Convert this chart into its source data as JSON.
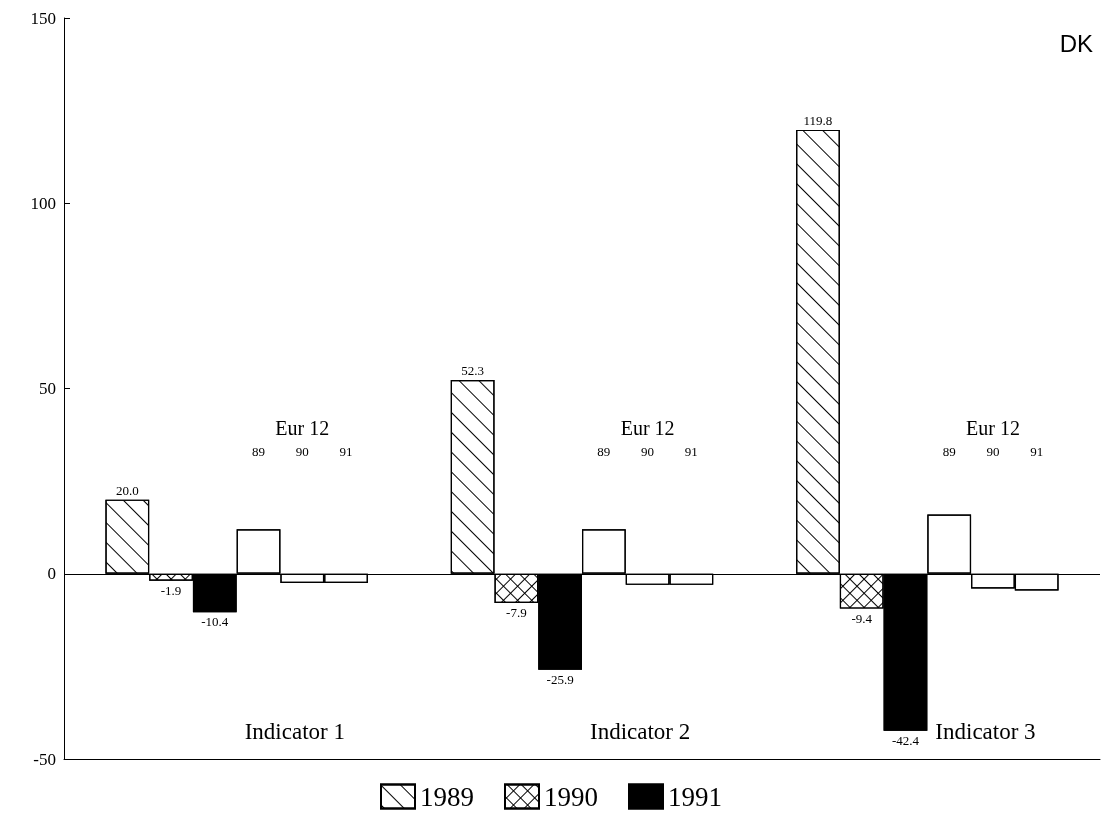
{
  "chart_data": {
    "type": "bar",
    "title": "DK",
    "categories": [
      "Indicator 1",
      "Indicator 2",
      "Indicator 3"
    ],
    "series": [
      {
        "name": "1989",
        "color": "#ffffff",
        "values": [
          20.0,
          52.3,
          119.8
        ],
        "value_labels": [
          "20.0",
          "52.3",
          "119.8"
        ]
      },
      {
        "name": "1990",
        "color": "#ffffff",
        "values": [
          -1.9,
          -7.9,
          -9.4
        ],
        "value_labels": [
          "-1.9",
          "-7.9",
          "-9.4"
        ]
      },
      {
        "name": "1991",
        "color": "#000000",
        "values": [
          -10.4,
          -25.9,
          -42.4
        ],
        "value_labels": [
          "-10.4",
          "-25.9",
          "-42.4"
        ]
      },
      {
        "color": "#ffffff",
        "values": [
          12,
          12,
          16
        ]
      },
      {
        "color": "#ffffff",
        "values": [
          -2.5,
          -3,
          -4
        ]
      },
      {
        "color": "#ffffff",
        "values": [
          -2.5,
          -3,
          -4.5
        ]
      }
    ],
    "annotations": [
      "Eur 12",
      "89",
      "90",
      "91",
      "Eur 12",
      "89",
      "90",
      "91",
      "Eur 12",
      "89",
      "90",
      "91"
    ],
    "ref_lines": [
      {
        "axis": "y",
        "value": 0,
        "color": "#000000",
        "line_style": "solid"
      }
    ],
    "ylim": [
      -50,
      150
    ],
    "yticks": [
      -50,
      0,
      50,
      100,
      150
    ],
    "grid": false,
    "legend": "bottom"
  }
}
